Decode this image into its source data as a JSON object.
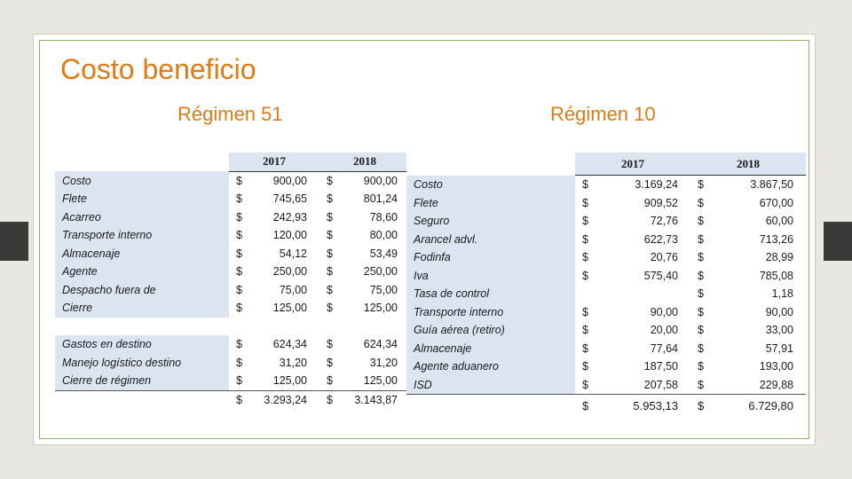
{
  "title": "Costo beneficio",
  "left": {
    "subtitle": "Régimen 51",
    "years": [
      "2017",
      "2018"
    ],
    "rows": [
      {
        "label": "Costo",
        "c1": "$",
        "v1": "900,00",
        "c2": "$",
        "v2": "900,00"
      },
      {
        "label": "Flete",
        "c1": "$",
        "v1": "745,65",
        "c2": "$",
        "v2": "801,24"
      },
      {
        "label": "Acarreo",
        "c1": "$",
        "v1": "242,93",
        "c2": "$",
        "v2": "78,60"
      },
      {
        "label": "Transporte interno",
        "c1": "$",
        "v1": "120,00",
        "c2": "$",
        "v2": "80,00"
      },
      {
        "label": "Almacenaje",
        "c1": "$",
        "v1": "54,12",
        "c2": "$",
        "v2": "53,49"
      },
      {
        "label": "Agente",
        "c1": "$",
        "v1": "250,00",
        "c2": "$",
        "v2": "250,00"
      },
      {
        "label": "Despacho fuera de",
        "c1": "$",
        "v1": "75,00",
        "c2": "$",
        "v2": "75,00"
      },
      {
        "label": "Cierre",
        "c1": "$",
        "v1": "125,00",
        "c2": "$",
        "v2": "125,00"
      },
      {
        "label": "Gastos en destino",
        "c1": "$",
        "v1": "624,34",
        "c2": "$",
        "v2": "624,34"
      },
      {
        "label": "Manejo logístico destino",
        "c1": "$",
        "v1": "31,20",
        "c2": "$",
        "v2": "31,20"
      },
      {
        "label": "Cierre de régimen",
        "c1": "$",
        "v1": "125,00",
        "c2": "$",
        "v2": "125,00"
      }
    ],
    "total": {
      "c1": "$",
      "v1": "3.293,24",
      "c2": "$",
      "v2": "3.143,87"
    }
  },
  "right": {
    "subtitle": "Régimen 10",
    "years": [
      "2017",
      "2018"
    ],
    "rows": [
      {
        "label": "Costo",
        "c1": "$",
        "v1": "3.169,24",
        "c2": "$",
        "v2": "3.867,50"
      },
      {
        "label": "Flete",
        "c1": "$",
        "v1": "909,52",
        "c2": "$",
        "v2": "670,00"
      },
      {
        "label": "Seguro",
        "c1": "$",
        "v1": "72,76",
        "c2": "$",
        "v2": "60,00"
      },
      {
        "label": "Arancel advl.",
        "c1": "$",
        "v1": "622,73",
        "c2": "$",
        "v2": "713,26"
      },
      {
        "label": "Fodinfa",
        "c1": "$",
        "v1": "20,76",
        "c2": "$",
        "v2": "28,99"
      },
      {
        "label": "Iva",
        "c1": "$",
        "v1": "575,40",
        "c2": "$",
        "v2": "785,08"
      },
      {
        "label": "Tasa de control",
        "c1": "",
        "v1": "",
        "c2": "$",
        "v2": "1,18"
      },
      {
        "label": "Transporte interno",
        "c1": "$",
        "v1": "90,00",
        "c2": "$",
        "v2": "90,00"
      },
      {
        "label": "Guía aérea (retiro)",
        "c1": "$",
        "v1": "20,00",
        "c2": "$",
        "v2": "33,00"
      },
      {
        "label": "Almacenaje",
        "c1": "$",
        "v1": "77,64",
        "c2": "$",
        "v2": "57,91"
      },
      {
        "label": "Agente aduanero",
        "c1": "$",
        "v1": "187,50",
        "c2": "$",
        "v2": "193,00"
      },
      {
        "label": "ISD",
        "c1": "$",
        "v1": "207,58",
        "c2": "$",
        "v2": "229,88"
      }
    ],
    "total": {
      "c1": "$",
      "v1": "5.953,13",
      "c2": "$",
      "v2": "6.729,80"
    }
  }
}
